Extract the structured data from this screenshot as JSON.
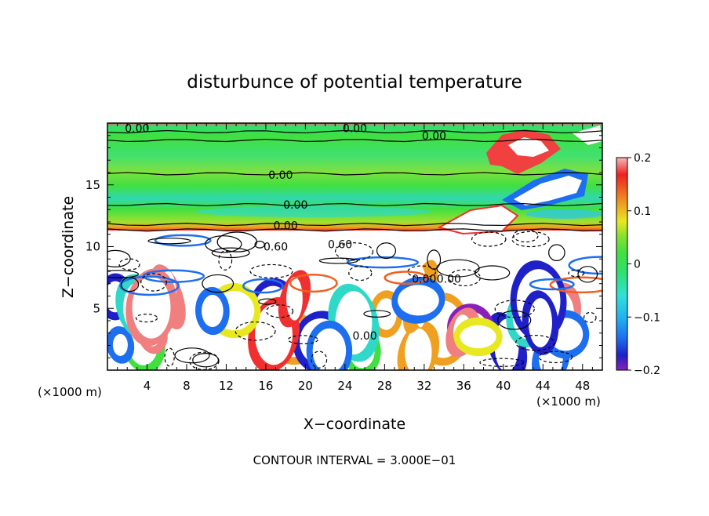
{
  "chart_data": {
    "type": "heatmap",
    "title": "disturbunce of potential temperature",
    "xlabel": "X−coordinate",
    "ylabel": "Z−coordinate",
    "x_unit": "(×1000 m)",
    "y_unit": "(×1000 m)",
    "xlim": [
      0,
      50
    ],
    "ylim": [
      0,
      20
    ],
    "x_ticks": [
      4,
      8,
      12,
      16,
      20,
      24,
      28,
      32,
      36,
      40,
      44,
      48
    ],
    "y_ticks": [
      5,
      10,
      15
    ],
    "colorbar": {
      "min": -0.2,
      "max": 0.2,
      "tick_values": [
        0.2,
        0.1,
        0,
        -0.1,
        -0.2
      ],
      "tick_labels": [
        "0.2",
        "0.1",
        "0",
        "−0.1",
        "−0.2"
      ],
      "colors": [
        "#8a20b8",
        "#2020c8",
        "#1e6ef0",
        "#20b4f0",
        "#30e0d8",
        "#30e070",
        "#40e040",
        "#88e030",
        "#e8e820",
        "#f0a020",
        "#f06020",
        "#f02020",
        "#f08080",
        "#f8b8b8"
      ]
    },
    "bands": [
      {
        "z_min": 11.3,
        "z_max": 20,
        "value": 0.0
      },
      {
        "z_min": 0,
        "z_max": 11.3,
        "value": null
      }
    ],
    "contour_labels": [
      {
        "x": 3,
        "z": 19.6,
        "text": "0.00"
      },
      {
        "x": 25,
        "z": 19.6,
        "text": "0.00"
      },
      {
        "x": 33,
        "z": 19.0,
        "text": "0.00"
      },
      {
        "x": 17.5,
        "z": 15.8,
        "text": "0.00"
      },
      {
        "x": 19,
        "z": 13.4,
        "text": "0.00"
      },
      {
        "x": 18,
        "z": 11.7,
        "text": "0.00"
      },
      {
        "x": 17,
        "z": 10.0,
        "text": "0.60"
      },
      {
        "x": 23.5,
        "z": 10.2,
        "text": "0.60"
      },
      {
        "x": 32,
        "z": 7.4,
        "text": "0.00"
      },
      {
        "x": 34.5,
        "z": 7.4,
        "text": "0.00"
      },
      {
        "x": 26,
        "z": 2.8,
        "text": "0.00"
      }
    ],
    "contour_interval_text": "CONTOUR INTERVAL = 3.000E−01"
  }
}
